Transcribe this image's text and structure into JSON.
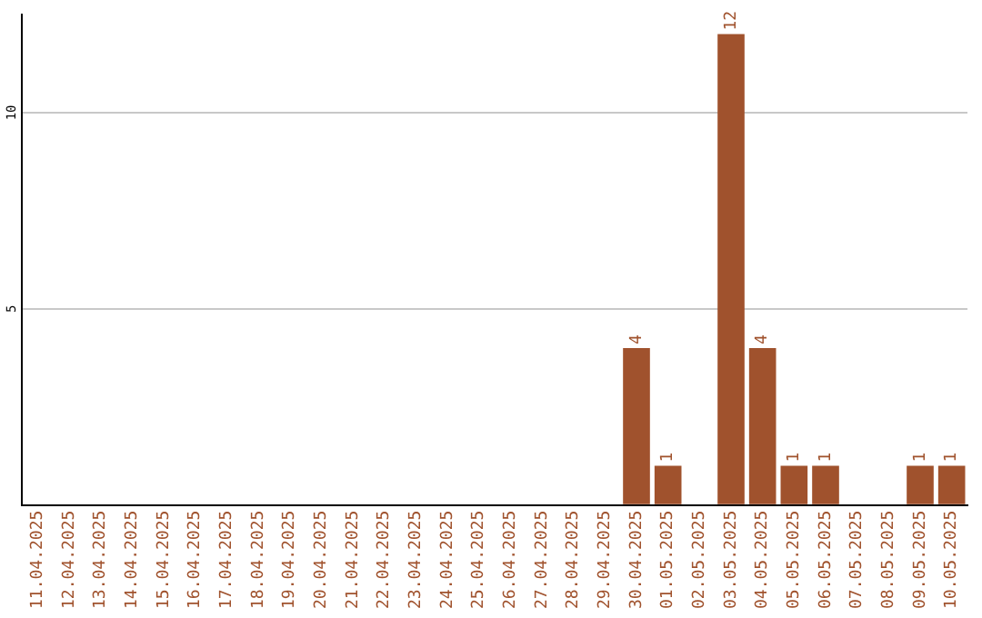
{
  "chart_data": {
    "type": "bar",
    "categories": [
      "11.04.2025",
      "12.04.2025",
      "13.04.2025",
      "14.04.2025",
      "15.04.2025",
      "16.04.2025",
      "17.04.2025",
      "18.04.2025",
      "19.04.2025",
      "20.04.2025",
      "21.04.2025",
      "22.04.2025",
      "23.04.2025",
      "24.04.2025",
      "25.04.2025",
      "26.04.2025",
      "27.04.2025",
      "28.04.2025",
      "29.04.2025",
      "30.04.2025",
      "01.05.2025",
      "02.05.2025",
      "03.05.2025",
      "04.05.2025",
      "05.05.2025",
      "06.05.2025",
      "07.05.2025",
      "08.05.2025",
      "09.05.2025",
      "10.05.2025"
    ],
    "values": [
      null,
      null,
      null,
      null,
      null,
      null,
      null,
      null,
      null,
      null,
      null,
      null,
      null,
      null,
      null,
      null,
      null,
      null,
      null,
      4,
      1,
      null,
      12,
      4,
      1,
      1,
      null,
      null,
      1,
      1
    ],
    "value_labels": [
      null,
      null,
      null,
      null,
      null,
      null,
      null,
      null,
      null,
      null,
      null,
      null,
      null,
      null,
      null,
      null,
      null,
      null,
      null,
      "4",
      "1",
      null,
      "12",
      "4",
      "1",
      "1",
      null,
      null,
      "1",
      "1"
    ],
    "color": "#a0522d",
    "ylim": [
      0,
      12.5
    ],
    "yticks": [
      {
        "value": 0,
        "label": null
      },
      5,
      10
    ],
    "grid": "y",
    "legend": false
  }
}
